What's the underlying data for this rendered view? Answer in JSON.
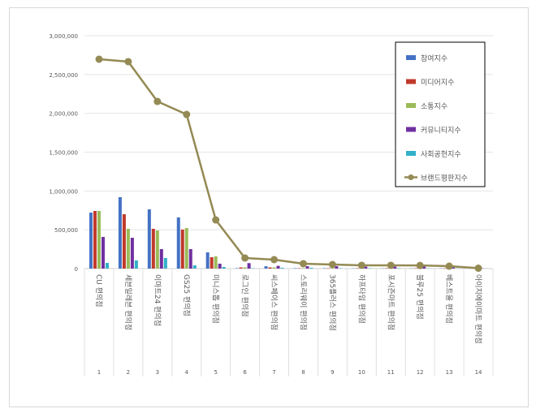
{
  "chart_data": {
    "type": "bar+line",
    "categories": [
      "CU 편의점",
      "세븐일레븐 편의점",
      "이마트24 편의점",
      "GS25 편의점",
      "미니스톱 편의점",
      "로그인 편의점",
      "씨스페이스 편의점",
      "스토리웨이 편의점",
      "365플러스 편의점",
      "하프타임 편의점",
      "포시즌마트 편의점",
      "블루25 편의점",
      "베스트올 편의점",
      "아이지에이마트 편의점"
    ],
    "ranks": [
      "1",
      "2",
      "3",
      "4",
      "5",
      "6",
      "7",
      "8",
      "9",
      "10",
      "11",
      "12",
      "13",
      "14"
    ],
    "ylim": [
      0,
      3000000
    ],
    "yticks": [
      "0",
      "500,000",
      "1,000,000",
      "1,500,000",
      "2,000,000",
      "2,500,000",
      "3,000,000"
    ],
    "grid": true,
    "legend_position": "top-right",
    "series": [
      {
        "name": "참여지수",
        "type": "bar",
        "color": "#4472c4",
        "values": [
          721000,
          920000,
          763000,
          659000,
          209000,
          5000,
          30000,
          5000,
          5000,
          3000,
          3000,
          3000,
          3000,
          1000
        ]
      },
      {
        "name": "미디어지수",
        "type": "bar",
        "color": "#c0392b",
        "values": [
          742000,
          700000,
          512000,
          502000,
          146000,
          15000,
          15000,
          5000,
          5000,
          5000,
          5000,
          5000,
          5000,
          1000
        ]
      },
      {
        "name": "소통지수",
        "type": "bar",
        "color": "#9bbb59",
        "values": [
          742000,
          512000,
          491000,
          523000,
          157000,
          15000,
          15000,
          5000,
          5000,
          5000,
          5000,
          5000,
          5000,
          1000
        ]
      },
      {
        "name": "커뮤니티지수",
        "type": "bar",
        "color": "#7030a0",
        "values": [
          408000,
          397000,
          251000,
          251000,
          63000,
          70000,
          35000,
          30000,
          30000,
          25000,
          25000,
          25000,
          15000,
          3000
        ]
      },
      {
        "name": "사회공헌지수",
        "type": "bar",
        "color": "#31b0c8",
        "values": [
          73000,
          105000,
          136000,
          42000,
          21000,
          5000,
          10000,
          10000,
          5000,
          5000,
          5000,
          3000,
          3000,
          1000
        ]
      },
      {
        "name": "브랜드평판지수",
        "type": "line",
        "color": "#948a54",
        "values": [
          2697000,
          2666000,
          2153000,
          1986000,
          627000,
          136000,
          115000,
          63000,
          52000,
          42000,
          42000,
          40000,
          31000,
          5000
        ]
      }
    ]
  }
}
